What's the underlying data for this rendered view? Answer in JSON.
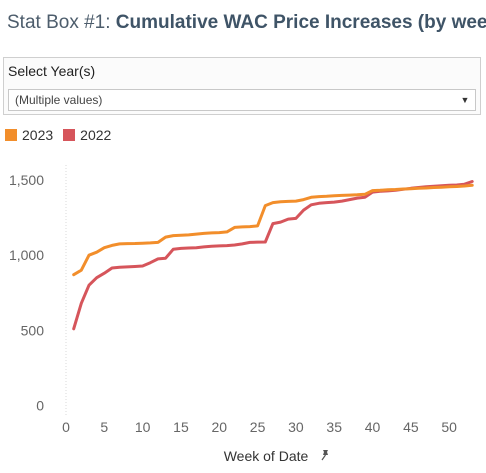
{
  "title": {
    "prefix": "Stat Box #1: ",
    "main": "Cumulative WAC Price Increases (by week)"
  },
  "filter": {
    "label": "Select Year(s)",
    "value": "(Multiple values)",
    "caret_icon": "caret-down-icon"
  },
  "colors": {
    "2023": "#f28e2b",
    "2022": "#d6555b"
  },
  "chart_data": {
    "type": "line",
    "xlabel": "Week of Date",
    "xlabel_icon": "pin-icon",
    "ylabel": "",
    "xlim": [
      0,
      53.5
    ],
    "ylim": [
      -50,
      1600
    ],
    "xticks": [
      0,
      5,
      10,
      15,
      20,
      25,
      30,
      35,
      40,
      45,
      50
    ],
    "yticks": [
      0,
      500,
      1000,
      1500
    ],
    "ytick_labels": [
      "0",
      "500",
      "1,000",
      "1,500"
    ],
    "legend": "top-left",
    "series": [
      {
        "name": "2023",
        "color": "#f28e2b",
        "x": [
          1,
          2,
          3,
          4,
          5,
          6,
          7,
          8,
          9,
          10,
          11,
          12,
          13,
          14,
          15,
          16,
          17,
          18,
          19,
          20,
          21,
          22,
          23,
          24,
          25,
          26,
          27,
          28,
          29,
          30,
          31,
          32,
          33,
          34,
          35,
          36,
          37,
          38,
          39,
          40,
          41,
          42,
          43,
          44,
          45,
          46,
          47,
          48,
          49,
          50,
          51,
          52,
          53
        ],
        "values": [
          870,
          900,
          1000,
          1020,
          1050,
          1065,
          1075,
          1077,
          1078,
          1080,
          1082,
          1085,
          1120,
          1130,
          1132,
          1135,
          1140,
          1145,
          1148,
          1150,
          1155,
          1185,
          1188,
          1190,
          1195,
          1330,
          1350,
          1355,
          1358,
          1360,
          1370,
          1385,
          1390,
          1392,
          1395,
          1398,
          1400,
          1402,
          1405,
          1430,
          1432,
          1435,
          1437,
          1440,
          1442,
          1445,
          1447,
          1450,
          1452,
          1455,
          1457,
          1460,
          1465
        ]
      },
      {
        "name": "2022",
        "color": "#d6555b",
        "x": [
          1,
          2,
          3,
          4,
          5,
          6,
          7,
          8,
          9,
          10,
          11,
          12,
          13,
          14,
          15,
          16,
          17,
          18,
          19,
          20,
          21,
          22,
          23,
          24,
          25,
          26,
          27,
          28,
          29,
          30,
          31,
          32,
          33,
          34,
          35,
          36,
          37,
          38,
          39,
          40,
          41,
          42,
          43,
          44,
          45,
          46,
          47,
          48,
          49,
          50,
          51,
          52,
          53
        ],
        "values": [
          510,
          680,
          800,
          850,
          880,
          915,
          920,
          922,
          925,
          928,
          950,
          975,
          980,
          1040,
          1045,
          1048,
          1050,
          1055,
          1060,
          1062,
          1064,
          1068,
          1075,
          1085,
          1087,
          1088,
          1210,
          1220,
          1240,
          1245,
          1300,
          1335,
          1345,
          1350,
          1353,
          1360,
          1370,
          1380,
          1385,
          1420,
          1425,
          1428,
          1432,
          1438,
          1445,
          1450,
          1455,
          1458,
          1462,
          1465,
          1467,
          1472,
          1490
        ]
      }
    ]
  }
}
